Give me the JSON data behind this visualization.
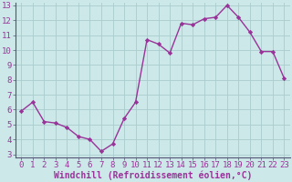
{
  "x": [
    0,
    1,
    2,
    3,
    4,
    5,
    6,
    7,
    8,
    9,
    10,
    11,
    12,
    13,
    14,
    15,
    16,
    17,
    18,
    19,
    20,
    21,
    22,
    23
  ],
  "y": [
    5.9,
    6.5,
    5.2,
    5.1,
    4.8,
    4.2,
    4.0,
    3.2,
    3.7,
    5.4,
    6.5,
    10.7,
    10.4,
    9.8,
    11.8,
    11.7,
    12.1,
    12.2,
    13.0,
    12.2,
    11.2,
    9.9,
    9.9,
    8.1
  ],
  "line_color": "#993399",
  "marker": "D",
  "markersize": 2.2,
  "linewidth": 1.0,
  "background_color": "#cce8e8",
  "grid_color": "#aacccc",
  "xlabel": "Windchill (Refroidissement éolien,°C)",
  "xlabel_fontsize": 7,
  "tick_fontsize": 6.5,
  "ylim_min": 3,
  "ylim_max": 13,
  "xlim_min": -0.5,
  "xlim_max": 23.5,
  "yticks": [
    3,
    4,
    5,
    6,
    7,
    8,
    9,
    10,
    11,
    12,
    13
  ],
  "xticks": [
    0,
    1,
    2,
    3,
    4,
    5,
    6,
    7,
    8,
    9,
    10,
    11,
    12,
    13,
    14,
    15,
    16,
    17,
    18,
    19,
    20,
    21,
    22,
    23
  ],
  "spine_color": "#666688",
  "tick_color": "#993399"
}
